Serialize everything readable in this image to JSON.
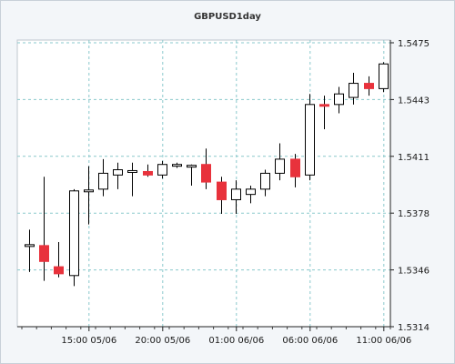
{
  "chart_data": {
    "type": "candlestick",
    "title": "GBPUSD1day",
    "xlabel": "",
    "ylabel": "",
    "ylim": [
      1.5314,
      1.5475
    ],
    "y_ticks": [
      "1.5475",
      "1.5443",
      "1.5411",
      "1.5378",
      "1.5346",
      "1.5314"
    ],
    "x_ticks": [
      "15:00 05/06",
      "20:00 05/06",
      "01:00 06/06",
      "06:00 06/06",
      "11:00 06/06"
    ],
    "grid": true,
    "colors": {
      "up": "#ffffff",
      "down": "#e8323c",
      "wick": "#000000",
      "grid": "#8ac9cc"
    },
    "candles": [
      {
        "open": 1.536,
        "high": 1.5369,
        "low": 1.5345,
        "close": 1.536
      },
      {
        "open": 1.536,
        "high": 1.5399,
        "low": 1.534,
        "close": 1.5351
      },
      {
        "open": 1.5348,
        "high": 1.5362,
        "low": 1.5342,
        "close": 1.5344
      },
      {
        "open": 1.5343,
        "high": 1.5392,
        "low": 1.5337,
        "close": 1.5391
      },
      {
        "open": 1.5391,
        "high": 1.5405,
        "low": 1.5372,
        "close": 1.5391
      },
      {
        "open": 1.5392,
        "high": 1.5409,
        "low": 1.5388,
        "close": 1.5401
      },
      {
        "open": 1.54,
        "high": 1.5407,
        "low": 1.5392,
        "close": 1.5403
      },
      {
        "open": 1.5402,
        "high": 1.5407,
        "low": 1.5388,
        "close": 1.5402
      },
      {
        "open": 1.5402,
        "high": 1.5406,
        "low": 1.5399,
        "close": 1.54
      },
      {
        "open": 1.54,
        "high": 1.5408,
        "low": 1.5398,
        "close": 1.5406
      },
      {
        "open": 1.5405,
        "high": 1.5407,
        "low": 1.5404,
        "close": 1.5406
      },
      {
        "open": 1.5405,
        "high": 1.5406,
        "low": 1.5394,
        "close": 1.5405
      },
      {
        "open": 1.5406,
        "high": 1.5415,
        "low": 1.5392,
        "close": 1.5396
      },
      {
        "open": 1.5396,
        "high": 1.5399,
        "low": 1.5378,
        "close": 1.5386
      },
      {
        "open": 1.5386,
        "high": 1.5397,
        "low": 1.5378,
        "close": 1.5392
      },
      {
        "open": 1.5389,
        "high": 1.5394,
        "low": 1.5384,
        "close": 1.5392
      },
      {
        "open": 1.5392,
        "high": 1.5403,
        "low": 1.5388,
        "close": 1.5401
      },
      {
        "open": 1.5401,
        "high": 1.5418,
        "low": 1.5397,
        "close": 1.5409
      },
      {
        "open": 1.5409,
        "high": 1.5412,
        "low": 1.5393,
        "close": 1.5399
      },
      {
        "open": 1.54,
        "high": 1.5446,
        "low": 1.5397,
        "close": 1.544
      },
      {
        "open": 1.544,
        "high": 1.5445,
        "low": 1.5426,
        "close": 1.5439
      },
      {
        "open": 1.544,
        "high": 1.545,
        "low": 1.5435,
        "close": 1.5446
      },
      {
        "open": 1.5444,
        "high": 1.5458,
        "low": 1.544,
        "close": 1.5452
      },
      {
        "open": 1.5452,
        "high": 1.5456,
        "low": 1.5445,
        "close": 1.5449
      },
      {
        "open": 1.5449,
        "high": 1.5464,
        "low": 1.5447,
        "close": 1.5463
      }
    ]
  }
}
